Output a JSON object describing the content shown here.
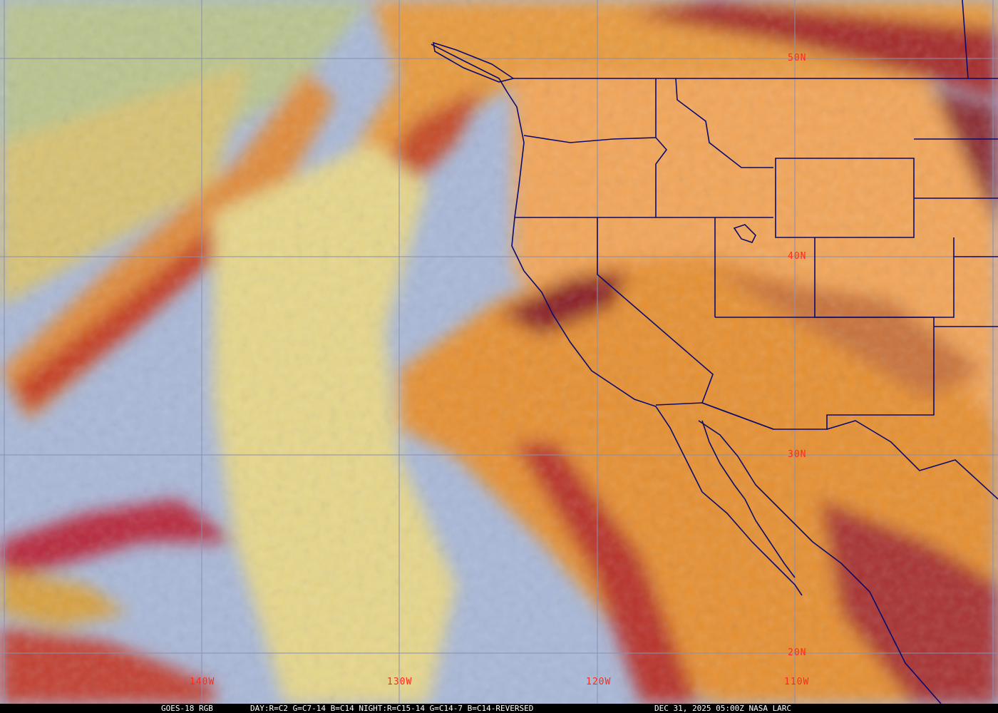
{
  "caption": {
    "satellite": "GOES-18 RGB",
    "recipe": "DAY:R=C2 G=C7-14 B=C14 NIGHT:R=C15-14 G=C14-7 B=C14-REVERSED",
    "timestamp": "DEC 31, 2025 05:00Z NASA LARC"
  },
  "latitude_labels": [
    "50N",
    "40N",
    "30N",
    "20N"
  ],
  "longitude_labels": [
    "140W",
    "130W",
    "120W",
    "110W"
  ],
  "colors": {
    "gridline": "#8a8fb0",
    "boundary": "#0a0a70",
    "grid_label": "#ff2a1a",
    "clear_ocean": "#a9b8d8",
    "high_cloud": "#f0a040",
    "thick_cloud": "#b02020"
  }
}
